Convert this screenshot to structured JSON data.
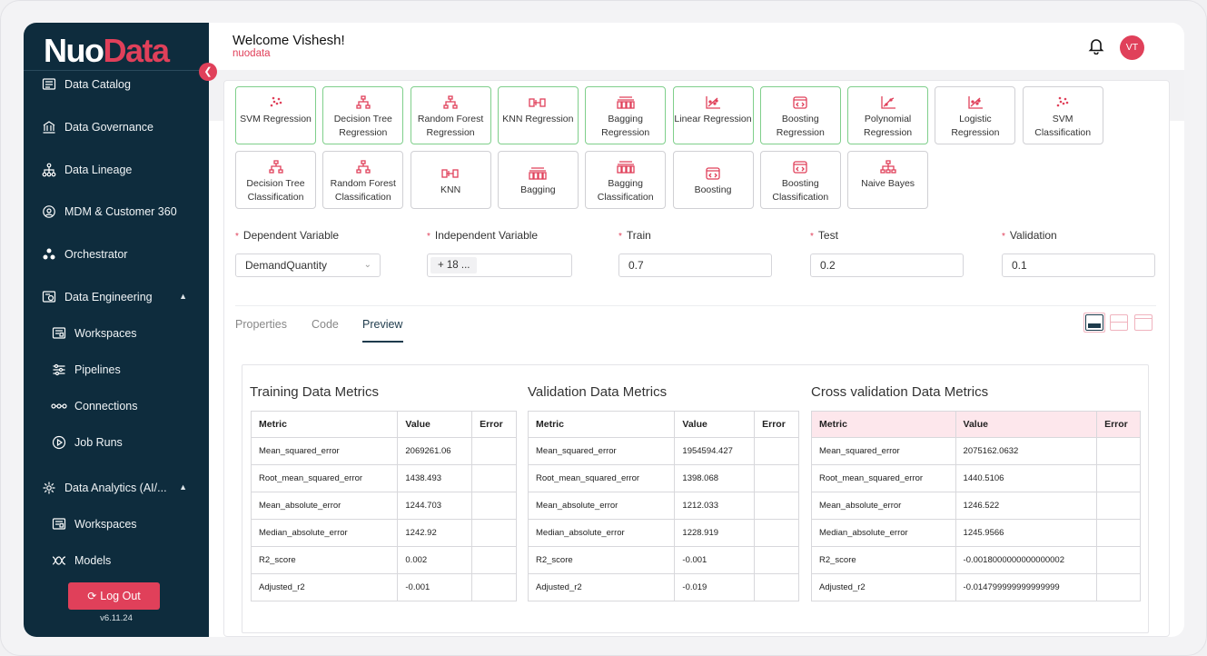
{
  "app": {
    "logo_part1": "Nuo",
    "logo_part2": "Data",
    "version": "v6.11.24",
    "logout_label": "Log Out"
  },
  "sidebar": {
    "items": [
      {
        "label": "Data Catalog",
        "icon": "catalog-icon"
      },
      {
        "label": "Data Governance",
        "icon": "governance-icon"
      },
      {
        "label": "Data Lineage",
        "icon": "lineage-icon"
      },
      {
        "label": "MDM & Customer 360",
        "icon": "mdm-icon"
      },
      {
        "label": "Orchestrator",
        "icon": "orchestrator-icon"
      },
      {
        "label": "Data Engineering",
        "icon": "engineering-icon",
        "expanded": true
      },
      {
        "label": "Workspaces",
        "icon": "workspace-icon"
      },
      {
        "label": "Pipelines",
        "icon": "pipelines-icon"
      },
      {
        "label": "Connections",
        "icon": "connections-icon"
      },
      {
        "label": "Job Runs",
        "icon": "play-icon"
      },
      {
        "label": "Data Analytics (AI/...",
        "icon": "analytics-icon",
        "expanded": true
      },
      {
        "label": "Workspaces",
        "icon": "workspace-icon"
      },
      {
        "label": "Models",
        "icon": "models-icon"
      }
    ]
  },
  "header": {
    "welcome": "Welcome Vishesh!",
    "sub": "nuodata",
    "avatar_initials": "VT"
  },
  "models": [
    {
      "label": "SVM Regression",
      "selected": true
    },
    {
      "label": "Decision Tree Regression",
      "selected": true
    },
    {
      "label": "Random Forest Regression",
      "selected": true
    },
    {
      "label": "KNN Regression",
      "selected": true
    },
    {
      "label": "Bagging Regression",
      "selected": true
    },
    {
      "label": "Linear Regression",
      "selected": true
    },
    {
      "label": "Boosting Regression",
      "selected": true
    },
    {
      "label": "Polynomial Regression",
      "selected": true
    },
    {
      "label": "Logistic Regression",
      "selected": false
    },
    {
      "label": "SVM Classification",
      "selected": false
    },
    {
      "label": "Decision Tree Classification",
      "selected": false
    },
    {
      "label": "Random Forest Classification",
      "selected": false
    },
    {
      "label": "KNN",
      "selected": false
    },
    {
      "label": "Bagging",
      "selected": false
    },
    {
      "label": "Bagging Classification",
      "selected": false
    },
    {
      "label": "Boosting",
      "selected": false
    },
    {
      "label": "Boosting Classification",
      "selected": false
    },
    {
      "label": "Naive Bayes",
      "selected": false
    }
  ],
  "form": {
    "dependent_label": "Dependent Variable",
    "dependent_value": "DemandQuantity",
    "independent_label": "Independent Variable",
    "independent_value": "+ 18 ...",
    "train_label": "Train",
    "train_value": "0.7",
    "test_label": "Test",
    "test_value": "0.2",
    "validation_label": "Validation",
    "validation_value": "0.1"
  },
  "tabs": [
    "Properties",
    "Code",
    "Preview"
  ],
  "active_tab": "Preview",
  "metrics": {
    "columns": [
      "Metric",
      "Value",
      "Error"
    ],
    "training": {
      "title": "Training Data Metrics",
      "rows": [
        [
          "Mean_squared_error",
          "2069261.06",
          ""
        ],
        [
          "Root_mean_squared_error",
          "1438.493",
          ""
        ],
        [
          "Mean_absolute_error",
          "1244.703",
          ""
        ],
        [
          "Median_absolute_error",
          "1242.92",
          ""
        ],
        [
          "R2_score",
          "0.002",
          ""
        ],
        [
          "Adjusted_r2",
          "-0.001",
          ""
        ]
      ]
    },
    "validation": {
      "title": "Validation Data Metrics",
      "rows": [
        [
          "Mean_squared_error",
          "1954594.427",
          ""
        ],
        [
          "Root_mean_squared_error",
          "1398.068",
          ""
        ],
        [
          "Mean_absolute_error",
          "1212.033",
          ""
        ],
        [
          "Median_absolute_error",
          "1228.919",
          ""
        ],
        [
          "R2_score",
          "-0.001",
          ""
        ],
        [
          "Adjusted_r2",
          "-0.019",
          ""
        ]
      ]
    },
    "cross": {
      "title": "Cross validation Data Metrics",
      "rows": [
        [
          "Mean_squared_error",
          "2075162.0632",
          ""
        ],
        [
          "Root_mean_squared_error",
          "1440.5106",
          ""
        ],
        [
          "Mean_absolute_error",
          "1246.522",
          ""
        ],
        [
          "Median_absolute_error",
          "1245.9566",
          ""
        ],
        [
          "R2_score",
          "-0.0018000000000000002",
          ""
        ],
        [
          "Adjusted_r2",
          "-0.014799999999999999",
          ""
        ]
      ]
    }
  },
  "colors": {
    "sidebar_bg": "#0e2c3d",
    "accent": "#e0405a",
    "selected_border": "#7fcf8b"
  }
}
